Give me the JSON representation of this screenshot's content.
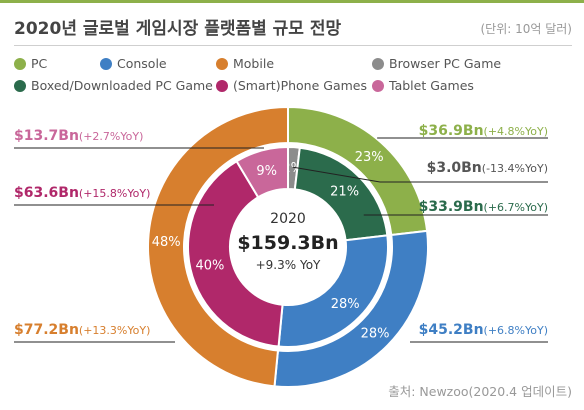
{
  "header": {
    "title": "2020년 글로벌 게임시장 플랫폼별 규모 전망",
    "unit": "(단위: 10억 달러)"
  },
  "legend": [
    {
      "label": "PC",
      "color": "#8db04a"
    },
    {
      "label": "Console",
      "color": "#3f7fc4"
    },
    {
      "label": "Mobile",
      "color": "#d77f2e"
    },
    {
      "label": "Browser PC Game",
      "color": "#8c8c8c"
    },
    {
      "label": "Boxed/Downloaded PC Game",
      "color": "#2b6b4c"
    },
    {
      "label": "(Smart)Phone Games",
      "color": "#b0286a"
    },
    {
      "label": "Tablet Games",
      "color": "#c9679a"
    }
  ],
  "center": {
    "year": "2020",
    "total": "$159.3Bn",
    "growth": "+9.3% YoY"
  },
  "source": "출처: Newzoo(2020.4 업데이트)",
  "chart_data": {
    "type": "pie",
    "variant": "nested-donut",
    "outer_ring": [
      {
        "name": "PC",
        "value": 36.9,
        "percent_label": "23%",
        "value_label": "$36.9Bn",
        "yoy": "(+4.8%YoY)",
        "color": "#8db04a"
      },
      {
        "name": "Console",
        "value": 45.2,
        "percent_label": "28%",
        "value_label": "$45.2Bn",
        "yoy": "(+6.8%YoY)",
        "color": "#3f7fc4"
      },
      {
        "name": "Mobile",
        "value": 77.2,
        "percent_label": "48%",
        "value_label": "$77.2Bn",
        "yoy": "(+13.3%YoY)",
        "color": "#d77f2e"
      }
    ],
    "inner_ring": [
      {
        "name": "Browser PC Game",
        "value": 3.0,
        "percent_label": "2%",
        "value_label": "$3.0Bn",
        "yoy": "(-13.4%YoY)",
        "color": "#8c8c8c"
      },
      {
        "name": "Boxed/Downloaded PC Game",
        "value": 33.9,
        "percent_label": "21%",
        "value_label": "$33.9Bn",
        "yoy": "(+6.7%YoY)",
        "color": "#2b6b4c"
      },
      {
        "name": "Console",
        "value": 45.2,
        "percent_label": "28%",
        "value_label": "",
        "yoy": "",
        "color": "#3f7fc4"
      },
      {
        "name": "(Smart)Phone Games",
        "value": 63.6,
        "percent_label": "40%",
        "value_label": "$63.6Bn",
        "yoy": "(+15.8%YoY)",
        "color": "#b0286a"
      },
      {
        "name": "Tablet Games",
        "value": 13.7,
        "percent_label": "9%",
        "value_label": "$13.7Bn",
        "yoy": "(+2.7%YoY)",
        "color": "#c9679a"
      }
    ]
  }
}
